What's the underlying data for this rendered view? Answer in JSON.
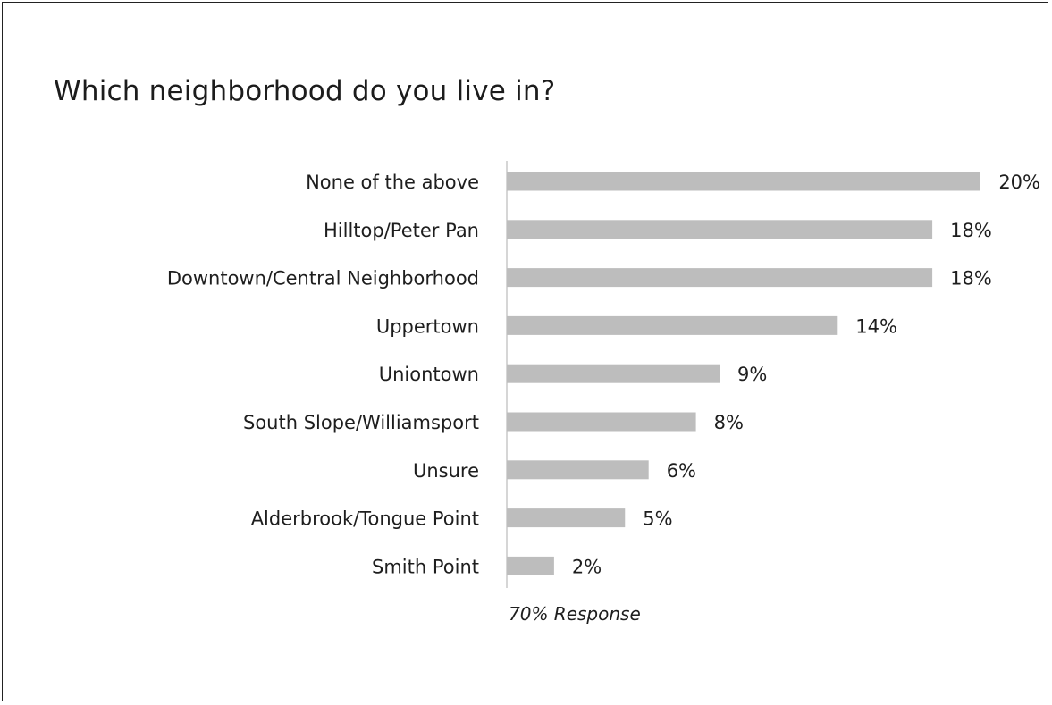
{
  "chart_data": {
    "type": "bar",
    "orientation": "horizontal",
    "title": "Which neighborhood do you live in?",
    "categories": [
      "None of the above",
      "Hilltop/Peter Pan",
      "Downtown/Central Neighborhood",
      "Uppertown",
      "Uniontown",
      "South Slope/Williamsport",
      "Unsure",
      "Alderbrook/Tongue Point",
      "Smith Point"
    ],
    "values": [
      20,
      18,
      18,
      14,
      9,
      8,
      6,
      5,
      2
    ],
    "value_labels": [
      "20%",
      "18%",
      "18%",
      "14%",
      "9%",
      "8%",
      "6%",
      "5%",
      "2%"
    ],
    "unit": "%",
    "note": "70% Response",
    "bar_color": "#bdbdbd",
    "grid": false,
    "legend": "none"
  }
}
